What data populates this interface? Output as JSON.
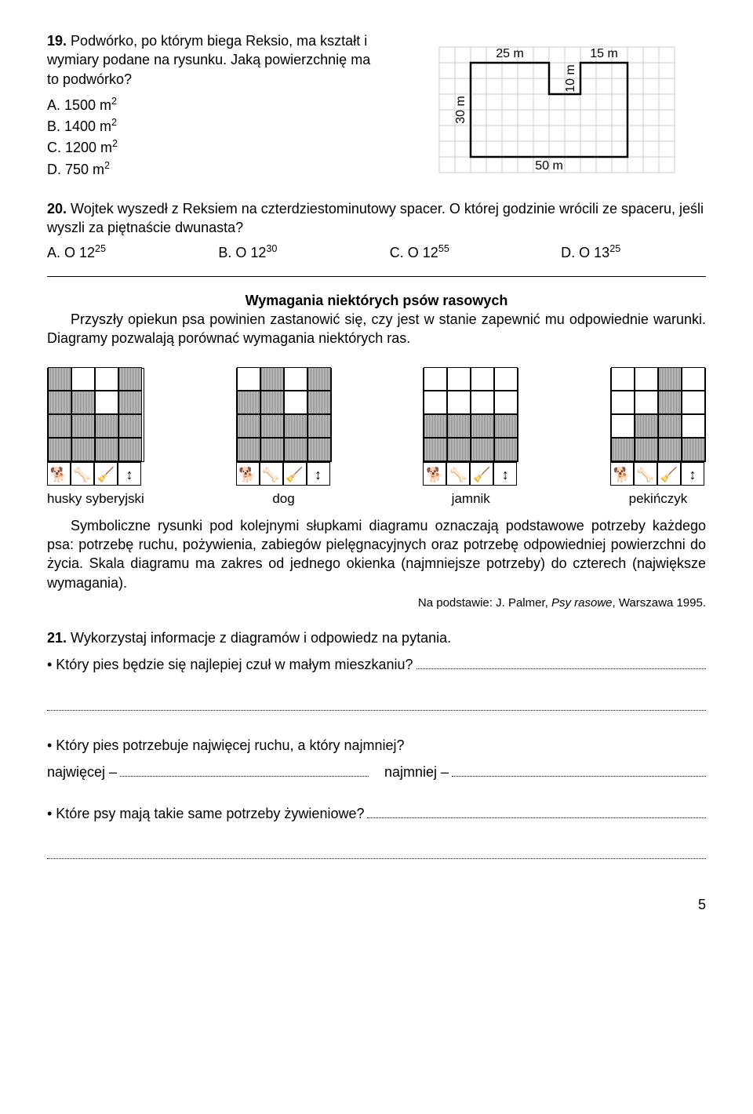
{
  "q19": {
    "number": "19.",
    "text": "Podwórko, po którym biega Reksio, ma kształt i wymiary podane na rysunku. Jaką powierzchnię ma to podwórko?",
    "answers": {
      "a": "A. 1500 m",
      "a_exp": "2",
      "b": "B. 1400 m",
      "b_exp": "2",
      "c": "C. 1200 m",
      "c_exp": "2",
      "d": "D. 750 m",
      "d_exp": "2"
    },
    "yard": {
      "top1": "25 m",
      "top2": "15 m",
      "right_inner": "10 m",
      "left": "30 m",
      "bottom": "50 m",
      "grid_color": "#cccccc",
      "stroke": "#000000"
    }
  },
  "q20": {
    "number": "20.",
    "text": "Wojtek wyszedł z Reksiem na czterdziestominutowy spacer. O której godzinie wrócili ze spaceru, jeśli wyszli za piętnaście dwunasta?",
    "answers": {
      "a_pre": "A. O 12",
      "a_exp": "25",
      "b_pre": "B. O 12",
      "b_exp": "30",
      "c_pre": "C. O 12",
      "c_exp": "55",
      "d_pre": "D. O 13",
      "d_exp": "25"
    }
  },
  "passage": {
    "title": "Wymagania niektórych psów rasowych",
    "p1": "Przyszły opiekun psa powinien zastanowić się, czy jest w stanie zapewnić mu odpowiednie warunki. Diagramy pozwalają porównać wymagania niektórych ras.",
    "p2": "Symboliczne rysunki pod kolejnymi słupkami diagramu oznaczają podstawowe potrzeby każdego psa: potrzebę ruchu, pożywienia, zabiegów pielęgnacyjnych oraz potrzebę odpowiedniej powierzchni do życia. Skala diagramu ma zakres od jednego okienka (najmniejsze potrzeby) do czterech (największe wymagania).",
    "source": "Na podstawie: J. Palmer, Psy rasowe, Warszawa 1995."
  },
  "charts": [
    {
      "label": "husky syberyjski",
      "values": [
        4,
        3,
        2,
        4
      ],
      "icons": [
        "🐕",
        "🦴",
        "🧹",
        "↕"
      ]
    },
    {
      "label": "dog",
      "values": [
        3,
        4,
        2,
        4
      ],
      "icons": [
        "🐕",
        "🦴",
        "🧹",
        "↕"
      ]
    },
    {
      "label": "jamnik",
      "values": [
        2,
        2,
        2,
        2
      ],
      "icons": [
        "🐕",
        "🦴",
        "🧹",
        "↕"
      ]
    },
    {
      "label": "pekińczyk",
      "values": [
        1,
        2,
        4,
        1
      ],
      "icons": [
        "🐕",
        "🦴",
        "🧹",
        "↕"
      ]
    }
  ],
  "q21": {
    "number": "21.",
    "text": "Wykorzystaj informacje z diagramów i odpowiedz na pytania.",
    "b1": "• Który pies będzie się najlepiej czuł w małym mieszkaniu?",
    "b2": "• Który pies potrzebuje najwięcej ruchu, a który najmniej?",
    "b2a": "najwięcej –",
    "b2b": "najmniej –",
    "b3": "• Które psy mają takie same potrzeby żywieniowe?"
  },
  "page_number": "5"
}
